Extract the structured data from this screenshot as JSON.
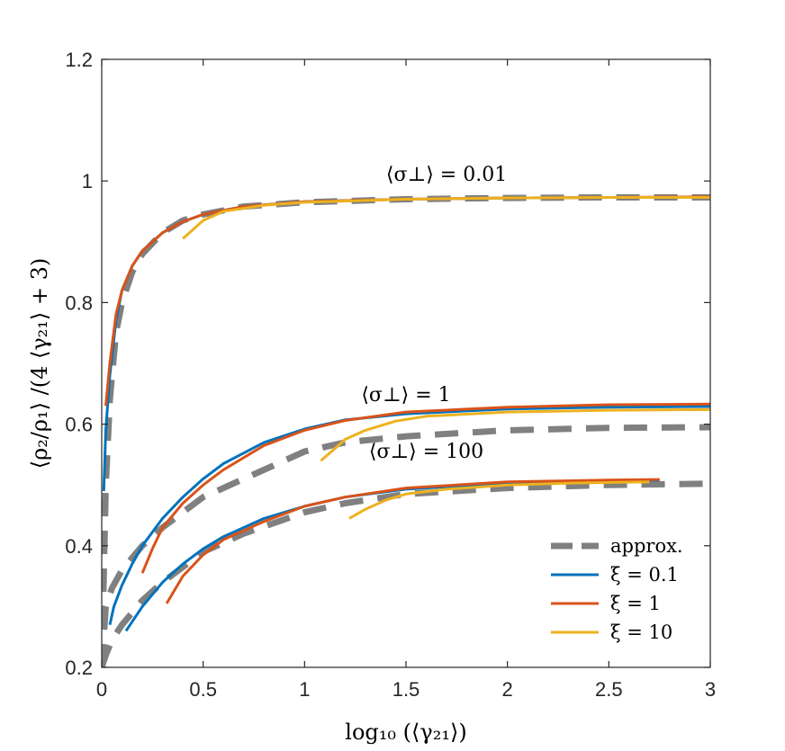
{
  "chart_data": {
    "type": "line",
    "title": "",
    "xlabel": "log₁₀ (⟨γ₂₁⟩)",
    "ylabel": "⟨ρ₂/ρ₁⟩ /(4 ⟨γ₂₁⟩ + 3)",
    "xlim": [
      0,
      3
    ],
    "ylim": [
      0.2,
      1.2
    ],
    "xticks": [
      0,
      0.5,
      1,
      1.5,
      2,
      2.5,
      3
    ],
    "xtick_labels": [
      "0",
      "0.5",
      "1",
      "1.5",
      "2",
      "2.5",
      "3"
    ],
    "yticks": [
      0.2,
      0.4,
      0.6,
      0.8,
      1.0,
      1.2
    ],
    "ytick_labels": [
      "0.2",
      "0.4",
      "0.6",
      "0.8",
      "1",
      "1.2"
    ],
    "grid": false,
    "legend_position": "bottom-right",
    "legend": [
      {
        "label": "approx.",
        "color": "#808080",
        "style": "dashed"
      },
      {
        "label": "ξ = 0.1",
        "color": "#0072BD",
        "style": "solid"
      },
      {
        "label": "ξ = 1",
        "color": "#D95319",
        "style": "solid"
      },
      {
        "label": "ξ = 10",
        "color": "#EDB120",
        "style": "solid"
      }
    ],
    "annotations": [
      {
        "text": "⟨σ⊥⟩ = 0.01",
        "x": 1.7,
        "y": 1.0
      },
      {
        "text": "⟨σ⊥⟩ = 1",
        "x": 1.5,
        "y": 0.638
      },
      {
        "text": "⟨σ⊥⟩ = 100",
        "x": 1.6,
        "y": 0.545
      }
    ],
    "series": [
      {
        "name": "approx. σ=0.01",
        "kind": "approx",
        "color": "#808080",
        "x": [
          0,
          0.02,
          0.04,
          0.07,
          0.1,
          0.15,
          0.2,
          0.3,
          0.4,
          0.5,
          0.7,
          1.0,
          1.5,
          2.0,
          2.5,
          3.0
        ],
        "y": [
          0.2,
          0.5,
          0.64,
          0.75,
          0.8,
          0.85,
          0.88,
          0.915,
          0.935,
          0.945,
          0.958,
          0.965,
          0.97,
          0.972,
          0.973,
          0.973
        ]
      },
      {
        "name": "approx. σ=1",
        "kind": "approx",
        "color": "#808080",
        "x": [
          0,
          0.02,
          0.05,
          0.1,
          0.2,
          0.3,
          0.4,
          0.5,
          0.7,
          0.9,
          1.0,
          1.2,
          1.5,
          2.0,
          2.5,
          3.0
        ],
        "y": [
          0.2,
          0.3,
          0.33,
          0.36,
          0.4,
          0.43,
          0.455,
          0.48,
          0.51,
          0.54,
          0.555,
          0.57,
          0.58,
          0.59,
          0.594,
          0.595
        ]
      },
      {
        "name": "approx. σ=100",
        "kind": "approx",
        "color": "#808080",
        "x": [
          0,
          0.02,
          0.05,
          0.1,
          0.2,
          0.3,
          0.4,
          0.5,
          0.7,
          1.0,
          1.2,
          1.5,
          2.0,
          2.5,
          3.0
        ],
        "y": [
          0.2,
          0.22,
          0.245,
          0.27,
          0.31,
          0.34,
          0.365,
          0.39,
          0.42,
          0.455,
          0.47,
          0.485,
          0.495,
          0.5,
          0.502
        ]
      },
      {
        "name": "ξ = 0.1, σ=0.01",
        "kind": "xi01",
        "color": "#0072BD",
        "x": [
          0.01,
          0.02,
          0.04,
          0.07,
          0.1,
          0.15,
          0.2,
          0.3,
          0.4,
          0.5,
          0.7,
          1.0,
          1.5,
          2.0,
          2.5,
          2.8
        ],
        "y": [
          0.49,
          0.59,
          0.68,
          0.77,
          0.82,
          0.86,
          0.885,
          0.915,
          0.933,
          0.945,
          0.958,
          0.966,
          0.97,
          0.972,
          0.973,
          0.973
        ]
      },
      {
        "name": "ξ = 0.1, σ=1",
        "kind": "xi01",
        "color": "#0072BD",
        "x": [
          0.04,
          0.06,
          0.1,
          0.15,
          0.2,
          0.3,
          0.4,
          0.5,
          0.6,
          0.8,
          1.0,
          1.2,
          1.5,
          2.0,
          2.5,
          3.0
        ],
        "y": [
          0.27,
          0.3,
          0.335,
          0.37,
          0.4,
          0.445,
          0.48,
          0.51,
          0.535,
          0.57,
          0.592,
          0.607,
          0.617,
          0.625,
          0.628,
          0.629
        ]
      },
      {
        "name": "ξ = 0.1, σ=100",
        "kind": "xi01",
        "color": "#0072BD",
        "x": [
          0.12,
          0.2,
          0.3,
          0.4,
          0.5,
          0.6,
          0.8,
          1.0,
          1.2,
          1.5,
          2.0,
          2.5,
          2.75
        ],
        "y": [
          0.26,
          0.3,
          0.34,
          0.37,
          0.395,
          0.415,
          0.445,
          0.465,
          0.48,
          0.493,
          0.503,
          0.507,
          0.508
        ]
      },
      {
        "name": "ξ = 1, σ=0.01",
        "kind": "xi1",
        "color": "#D95319",
        "x": [
          0.02,
          0.04,
          0.07,
          0.1,
          0.15,
          0.2,
          0.3,
          0.4,
          0.5,
          0.7,
          1.0,
          1.5,
          2.0,
          2.5,
          3.0
        ],
        "y": [
          0.63,
          0.7,
          0.78,
          0.82,
          0.86,
          0.885,
          0.915,
          0.933,
          0.945,
          0.958,
          0.966,
          0.97,
          0.972,
          0.973,
          0.974
        ]
      },
      {
        "name": "ξ = 1, σ=1",
        "kind": "xi1",
        "color": "#D95319",
        "x": [
          0.2,
          0.25,
          0.3,
          0.4,
          0.5,
          0.6,
          0.8,
          1.0,
          1.2,
          1.5,
          2.0,
          2.5,
          3.0
        ],
        "y": [
          0.355,
          0.395,
          0.43,
          0.47,
          0.5,
          0.525,
          0.565,
          0.59,
          0.606,
          0.62,
          0.628,
          0.632,
          0.633
        ]
      },
      {
        "name": "ξ = 1, σ=100",
        "kind": "xi1",
        "color": "#D95319",
        "x": [
          0.32,
          0.4,
          0.5,
          0.6,
          0.8,
          1.0,
          1.2,
          1.5,
          2.0,
          2.5,
          2.75
        ],
        "y": [
          0.305,
          0.35,
          0.385,
          0.41,
          0.44,
          0.465,
          0.48,
          0.495,
          0.505,
          0.508,
          0.509
        ]
      },
      {
        "name": "ξ = 10, σ=0.01",
        "kind": "xi10",
        "color": "#EDB120",
        "x": [
          0.4,
          0.5,
          0.6,
          0.8,
          1.0,
          1.5,
          2.0,
          2.5,
          3.0
        ],
        "y": [
          0.905,
          0.935,
          0.95,
          0.96,
          0.965,
          0.97,
          0.972,
          0.973,
          0.973
        ]
      },
      {
        "name": "ξ = 10, σ=1",
        "kind": "xi10",
        "color": "#EDB120",
        "x": [
          1.08,
          1.15,
          1.2,
          1.3,
          1.45,
          1.6,
          2.0,
          2.5,
          3.0
        ],
        "y": [
          0.54,
          0.56,
          0.575,
          0.59,
          0.605,
          0.613,
          0.62,
          0.623,
          0.624
        ]
      },
      {
        "name": "ξ = 10, σ=100",
        "kind": "xi10",
        "color": "#EDB120",
        "x": [
          1.22,
          1.3,
          1.4,
          1.5,
          1.7,
          2.0,
          2.3,
          2.7
        ],
        "y": [
          0.445,
          0.46,
          0.475,
          0.485,
          0.493,
          0.5,
          0.503,
          0.505
        ]
      }
    ]
  }
}
